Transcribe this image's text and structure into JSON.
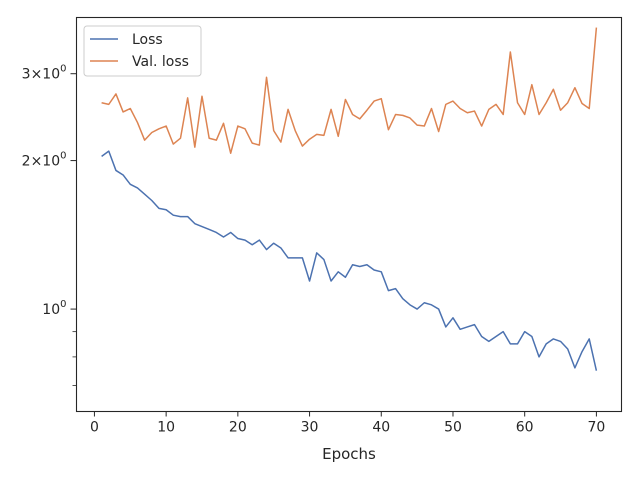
{
  "chart_data": {
    "type": "line",
    "xlabel": "Epochs",
    "ylabel": "",
    "y_scale": "log",
    "xlim": [
      -2.5,
      73.5
    ],
    "ylim": [
      0.62,
      3.9
    ],
    "grid": false,
    "legend_position": "top-left",
    "x_ticks": [
      0,
      10,
      20,
      30,
      40,
      50,
      60,
      70
    ],
    "x_tick_labels": [
      "0",
      "10",
      "20",
      "30",
      "40",
      "50",
      "60",
      "70"
    ],
    "y_major_ticks": [
      1,
      2,
      3
    ],
    "y_major_tick_labels": [
      "10^0",
      "2×10^0",
      "3×10^0"
    ],
    "y_minor_ticks": [
      0.7,
      0.8,
      0.9
    ],
    "x": [
      1,
      2,
      3,
      4,
      5,
      6,
      7,
      8,
      9,
      10,
      11,
      12,
      13,
      14,
      15,
      16,
      17,
      18,
      19,
      20,
      21,
      22,
      23,
      24,
      25,
      26,
      27,
      28,
      29,
      30,
      31,
      32,
      33,
      34,
      35,
      36,
      37,
      38,
      39,
      40,
      41,
      42,
      43,
      44,
      45,
      46,
      47,
      48,
      49,
      50,
      51,
      52,
      53,
      54,
      55,
      56,
      57,
      58,
      59,
      60,
      61,
      62,
      63,
      64,
      65,
      66,
      67,
      68,
      69,
      70
    ],
    "series": [
      {
        "name": "Loss",
        "color": "#4c72b0",
        "values": [
          2.04,
          2.09,
          1.91,
          1.87,
          1.79,
          1.76,
          1.71,
          1.66,
          1.6,
          1.59,
          1.55,
          1.54,
          1.54,
          1.49,
          1.47,
          1.45,
          1.43,
          1.4,
          1.43,
          1.39,
          1.38,
          1.35,
          1.38,
          1.32,
          1.36,
          1.33,
          1.27,
          1.27,
          1.27,
          1.14,
          1.3,
          1.26,
          1.14,
          1.19,
          1.16,
          1.23,
          1.22,
          1.23,
          1.2,
          1.19,
          1.09,
          1.1,
          1.05,
          1.02,
          1.0,
          1.03,
          1.02,
          1.0,
          0.92,
          0.96,
          0.91,
          0.92,
          0.93,
          0.88,
          0.86,
          0.88,
          0.9,
          0.85,
          0.85,
          0.9,
          0.88,
          0.8,
          0.85,
          0.87,
          0.86,
          0.83,
          0.76,
          0.82,
          0.87,
          0.75
        ]
      },
      {
        "name": "Val. loss",
        "color": "#dd8452",
        "values": [
          2.62,
          2.6,
          2.73,
          2.51,
          2.55,
          2.39,
          2.2,
          2.28,
          2.32,
          2.35,
          2.16,
          2.22,
          2.68,
          2.13,
          2.7,
          2.22,
          2.2,
          2.38,
          2.07,
          2.35,
          2.32,
          2.17,
          2.15,
          2.95,
          2.3,
          2.18,
          2.54,
          2.3,
          2.14,
          2.21,
          2.26,
          2.25,
          2.54,
          2.24,
          2.66,
          2.48,
          2.43,
          2.53,
          2.64,
          2.67,
          2.31,
          2.48,
          2.47,
          2.44,
          2.36,
          2.35,
          2.55,
          2.29,
          2.6,
          2.64,
          2.55,
          2.5,
          2.52,
          2.35,
          2.54,
          2.6,
          2.48,
          3.32,
          2.62,
          2.48,
          2.85,
          2.48,
          2.62,
          2.79,
          2.53,
          2.62,
          2.81,
          2.61,
          2.55,
          3.72
        ]
      }
    ]
  }
}
